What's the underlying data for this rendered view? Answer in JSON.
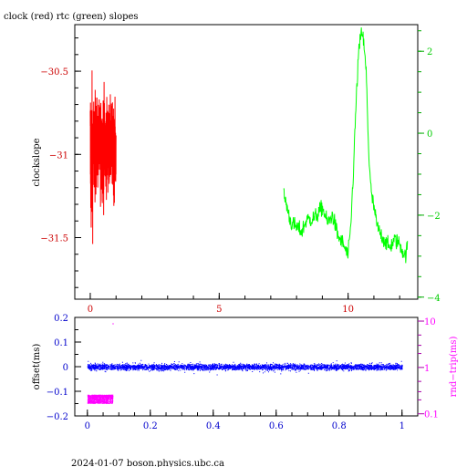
{
  "header": {
    "title": "clock (red) rtc (green) slopes"
  },
  "footer": {
    "text": "2024-01-07  boson.physics.ubc.ca"
  },
  "colors": {
    "clock": "#ff0000",
    "rtc": "#00ff00",
    "offset": "#0000ff",
    "rtt": "#ff00ff",
    "axis_left_top": "#cc0000",
    "axis_left_bottom": "#0000cc"
  },
  "chart_data": [
    {
      "type": "line",
      "title": "clock (red) rtc (green) slopes",
      "xlabel": "",
      "ylabel": "clockslope",
      "xlim": [
        -0.6,
        12.7
      ],
      "ylim": [
        -31.87,
        -30.22
      ],
      "y2lim": [
        -4.05,
        2.65
      ],
      "xticks": [
        0,
        5,
        10
      ],
      "xticklabels": [
        "0",
        "5",
        "10"
      ],
      "yticks": [
        -30.5,
        -31,
        -31.5
      ],
      "yticklabels": [
        "−30.5",
        "−31",
        "−31.5"
      ],
      "y2ticks": [
        2,
        0,
        -2,
        -4
      ],
      "y2ticklabels": [
        "2",
        "0",
        "−2",
        "−4"
      ],
      "series": [
        {
          "axis": "left",
          "color": "#ff0000",
          "x": [
            0.0,
            0.05,
            0.1,
            0.15,
            0.2,
            0.3,
            0.4,
            0.5,
            0.6,
            0.7,
            0.8,
            0.9,
            1.0
          ],
          "y_min": [
            -31.8,
            -31.7,
            -31.55,
            -31.45,
            -31.35,
            -31.3,
            -31.35,
            -31.4,
            -31.35,
            -31.3,
            -31.3,
            -31.35,
            -31.3
          ],
          "y_max": [
            -30.25,
            -30.35,
            -30.45,
            -30.5,
            -30.55,
            -30.6,
            -30.55,
            -30.5,
            -30.55,
            -30.6,
            -30.6,
            -30.6,
            -30.65
          ]
        },
        {
          "axis": "right",
          "color": "#00ff00",
          "x": [
            7.5,
            7.6,
            7.7,
            7.8,
            8.0,
            8.2,
            8.4,
            8.6,
            8.8,
            9.0,
            9.2,
            9.4,
            9.6,
            9.8,
            10.0,
            10.1,
            10.2,
            10.3,
            10.4,
            10.5,
            10.55,
            10.6,
            10.7,
            10.8,
            10.9,
            11.0,
            11.1,
            11.2,
            11.4,
            11.6,
            11.8,
            12.0,
            12.2,
            12.3
          ],
          "y": [
            -1.5,
            -1.7,
            -2.0,
            -2.2,
            -2.3,
            -2.4,
            -2.1,
            -2.1,
            -2.0,
            -1.8,
            -2.2,
            -2.0,
            -2.5,
            -2.7,
            -3.0,
            -2.3,
            -1.0,
            0.6,
            1.9,
            2.4,
            2.5,
            2.2,
            1.5,
            -0.5,
            -1.5,
            -1.8,
            -2.2,
            -2.4,
            -2.6,
            -2.8,
            -2.6,
            -2.7,
            -3.0,
            -2.8
          ]
        }
      ]
    },
    {
      "type": "scatter",
      "xlabel": "",
      "ylabel": "offset(ms)",
      "y2label": "rnd−trip(ms)",
      "xlim": [
        -0.04,
        1.05
      ],
      "ylim": [
        -0.2,
        0.2
      ],
      "y2lim": [
        0.09,
        12
      ],
      "y2scale": "log",
      "xticks": [
        0,
        0.2,
        0.4,
        0.6,
        0.8,
        1
      ],
      "xticklabels": [
        "0",
        "0.2",
        "0.4",
        "0.6",
        "0.8",
        "1"
      ],
      "yticks": [
        0.2,
        0.1,
        0,
        -0.1,
        -0.2
      ],
      "yticklabels": [
        "0.2",
        "0.1",
        "0",
        "−0.1",
        "−0.2"
      ],
      "y2ticks": [
        10,
        1,
        0.1
      ],
      "y2ticklabels": [
        "10",
        "1",
        "0.1"
      ],
      "series": [
        {
          "axis": "left",
          "color": "#0000ff",
          "x_range": [
            0,
            1
          ],
          "y_center": 0.0,
          "y_spread": 0.02,
          "y_outlier_spread": 0.04
        },
        {
          "axis": "right",
          "color": "#ff00ff",
          "x_range": [
            0,
            0.08
          ],
          "y_range": [
            0.17,
            0.26
          ],
          "outliers": [
            {
              "x": 0.08,
              "y": 9.0
            }
          ]
        }
      ]
    }
  ]
}
